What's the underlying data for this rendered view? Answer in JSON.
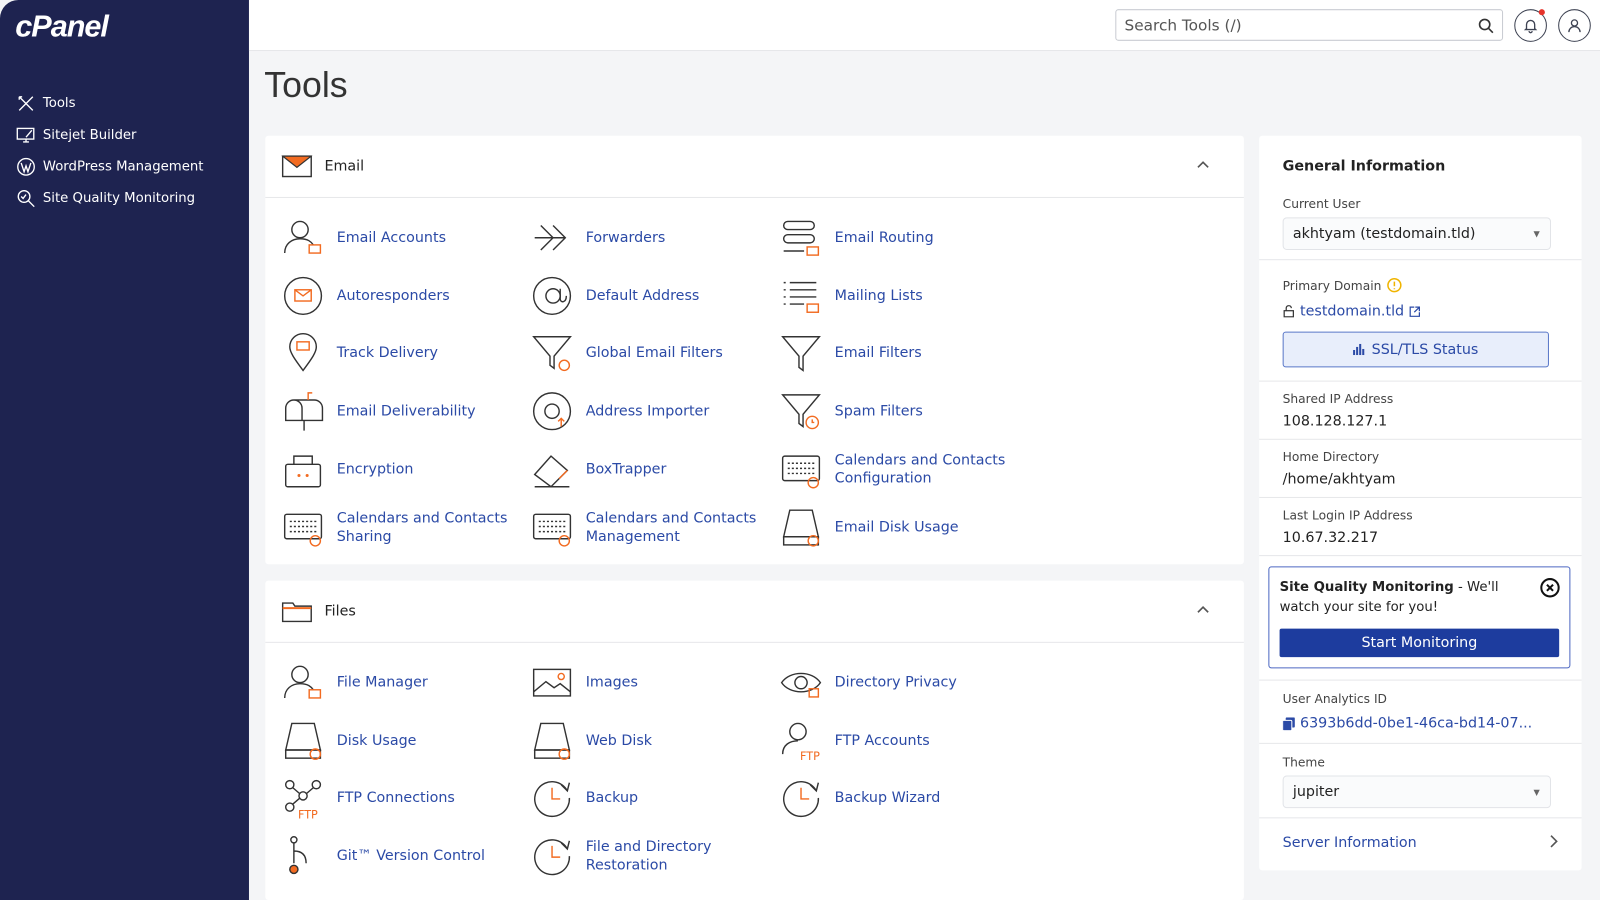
{
  "brand": "cPanel",
  "sidebar": {
    "items": [
      {
        "label": "Tools",
        "icon": "tools-icon"
      },
      {
        "label": "Sitejet Builder",
        "icon": "monitor-pen-icon"
      },
      {
        "label": "WordPress Management",
        "icon": "wordpress-icon"
      },
      {
        "label": "Site Quality Monitoring",
        "icon": "magnifier-check-icon"
      }
    ]
  },
  "topbar": {
    "search_placeholder": "Search Tools (/)"
  },
  "page_title": "Tools",
  "sections": [
    {
      "title": "Email",
      "tools": [
        {
          "label": "Email Accounts",
          "icon": "user"
        },
        {
          "label": "Forwarders",
          "icon": "arrow"
        },
        {
          "label": "Email Routing",
          "icon": "routing"
        },
        {
          "label": "Autoresponders",
          "icon": "circle-mail"
        },
        {
          "label": "Default Address",
          "icon": "at"
        },
        {
          "label": "Mailing Lists",
          "icon": "list"
        },
        {
          "label": "Track Delivery",
          "icon": "pin"
        },
        {
          "label": "Global Email Filters",
          "icon": "funnel-globe"
        },
        {
          "label": "Email Filters",
          "icon": "funnel"
        },
        {
          "label": "Email Deliverability",
          "icon": "mailbox"
        },
        {
          "label": "Address Importer",
          "icon": "at-arrow"
        },
        {
          "label": "Spam Filters",
          "icon": "funnel-clock"
        },
        {
          "label": "Encryption",
          "icon": "lock-box"
        },
        {
          "label": "BoxTrapper",
          "icon": "box"
        },
        {
          "label": "Calendars and Contacts Configuration",
          "icon": "calendar"
        },
        {
          "label": "Calendars and Contacts Sharing",
          "icon": "calendar"
        },
        {
          "label": "Calendars and Contacts Management",
          "icon": "calendar"
        },
        {
          "label": "Email Disk Usage",
          "icon": "disk"
        }
      ]
    },
    {
      "title": "Files",
      "tools": [
        {
          "label": "File Manager",
          "icon": "user"
        },
        {
          "label": "Images",
          "icon": "image"
        },
        {
          "label": "Directory Privacy",
          "icon": "eye"
        },
        {
          "label": "Disk Usage",
          "icon": "disk"
        },
        {
          "label": "Web Disk",
          "icon": "disk"
        },
        {
          "label": "FTP Accounts",
          "icon": "user-ftp"
        },
        {
          "label": "FTP Connections",
          "icon": "network"
        },
        {
          "label": "Backup",
          "icon": "clock"
        },
        {
          "label": "Backup Wizard",
          "icon": "clock"
        },
        {
          "label": "Git™ Version Control",
          "icon": "git"
        },
        {
          "label": "File and Directory Restoration",
          "icon": "clock"
        }
      ]
    }
  ],
  "info": {
    "title": "General Information",
    "current_user_label": "Current User",
    "current_user": "akhtyam (testdomain.tld)",
    "primary_domain_label": "Primary Domain",
    "primary_domain": "testdomain.tld",
    "ssl_button": "SSL/TLS Status",
    "shared_ip_label": "Shared IP Address",
    "shared_ip": "108.128.127.1",
    "home_dir_label": "Home Directory",
    "home_dir": "/home/akhtyam",
    "last_login_label": "Last Login IP Address",
    "last_login": "10.67.32.217",
    "sqm_title": "Site Quality Monitoring",
    "sqm_text": " - We'll watch your site for you!",
    "sqm_button": "Start Monitoring",
    "analytics_label": "User Analytics ID",
    "analytics_id": "6393b6dd-0be1-46ca-bd14-07...",
    "theme_label": "Theme",
    "theme": "jupiter",
    "server_info": "Server Information"
  },
  "colors": {
    "sidebar": "#1e2350",
    "link": "#2b4aa6",
    "accent": "#f26b21",
    "primary_button": "#1d3c9e"
  }
}
